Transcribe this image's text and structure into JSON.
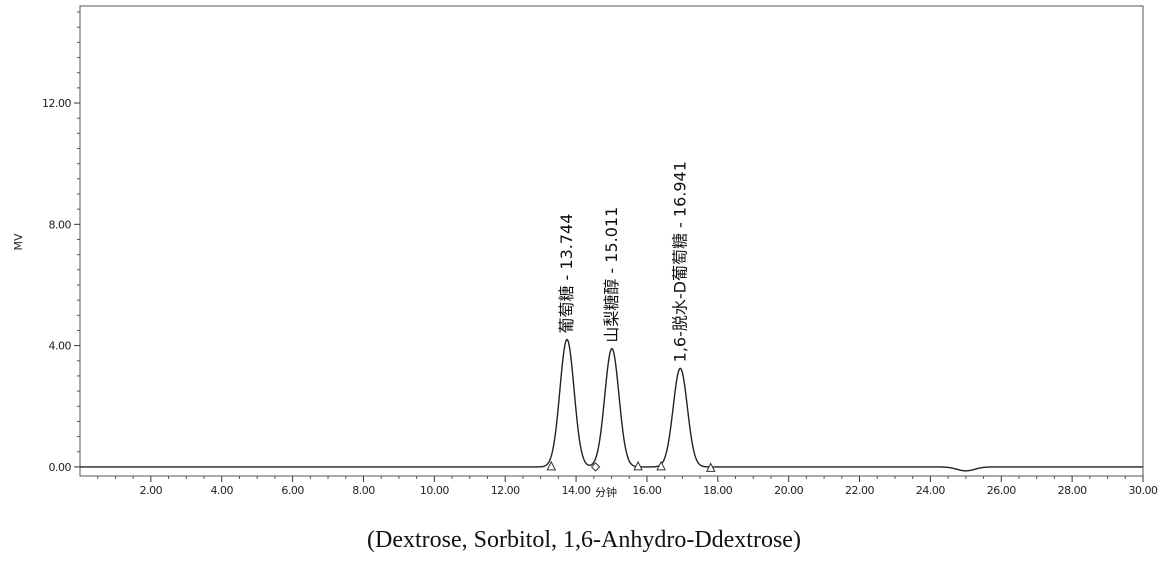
{
  "chart_data": {
    "type": "line",
    "title": "",
    "xlabel": "分钟",
    "ylabel": "MV",
    "xlim": [
      0,
      30
    ],
    "ylim": [
      -0.3,
      15.2
    ],
    "grid": false,
    "x_ticks": [
      "2.00",
      "4.00",
      "6.00",
      "8.00",
      "10.00",
      "12.00",
      "14.00",
      "16.00",
      "18.00",
      "20.00",
      "22.00",
      "24.00",
      "26.00",
      "28.00",
      "30.00"
    ],
    "x_tick_values": [
      2,
      4,
      6,
      8,
      10,
      12,
      14,
      16,
      18,
      20,
      22,
      24,
      26,
      28,
      30
    ],
    "y_ticks": [
      "0.00",
      "4.00",
      "8.00",
      "12.00"
    ],
    "y_tick_values": [
      0,
      4,
      8,
      12
    ],
    "series": [
      {
        "baseline": 0.0,
        "peaks": [
          {
            "label": "葡萄糖 - 13.744",
            "retention_time": 13.744,
            "height": 4.2,
            "sigma": 0.2
          },
          {
            "label": "山梨糖醇 - 15.011",
            "retention_time": 15.011,
            "height": 3.9,
            "sigma": 0.2
          },
          {
            "label": "1,6-脱水-D葡萄糖 - 16.941",
            "retention_time": 16.941,
            "height": 3.25,
            "sigma": 0.2
          }
        ],
        "dip": {
          "x": 25.0,
          "depth": -0.13,
          "sigma": 0.25
        },
        "integration_markers": [
          {
            "x": 13.3,
            "y": 0.0,
            "shape": "triangle"
          },
          {
            "x": 14.55,
            "y": 0.0,
            "shape": "diamond"
          },
          {
            "x": 15.75,
            "y": 0.0,
            "shape": "triangle"
          },
          {
            "x": 16.4,
            "y": 0.0,
            "shape": "triangle"
          },
          {
            "x": 17.8,
            "y": -0.05,
            "shape": "triangle"
          }
        ]
      }
    ]
  },
  "caption": "(Dextrose, Sorbitol, 1,6-Anhydro-Ddextrose)"
}
